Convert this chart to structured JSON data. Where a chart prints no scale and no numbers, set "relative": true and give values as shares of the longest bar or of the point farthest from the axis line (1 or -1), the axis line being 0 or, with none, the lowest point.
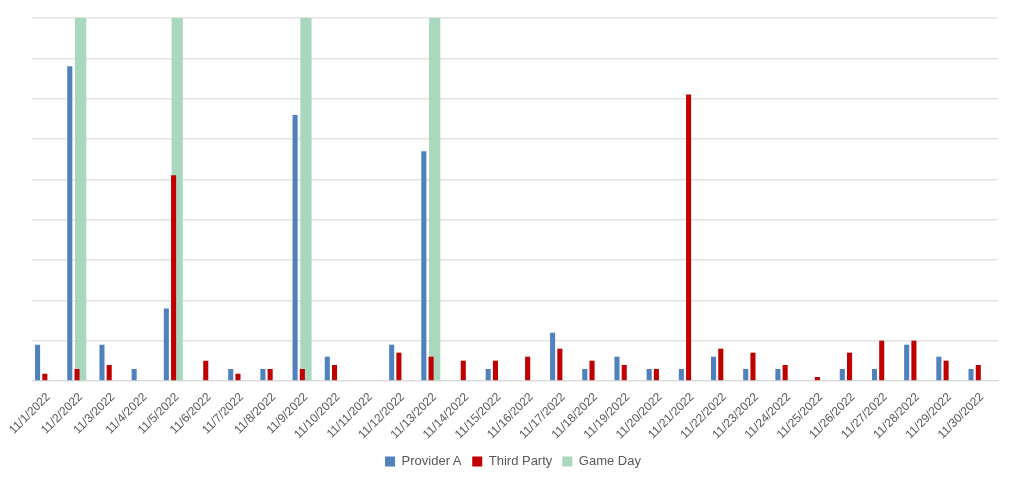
{
  "chart_data": {
    "type": "bar",
    "relative": true,
    "grid": "y",
    "legend": "bottom",
    "categories": [
      "11/1/2022",
      "11/2/2022",
      "11/3/2022",
      "11/4/2022",
      "11/5/2022",
      "11/6/2022",
      "11/7/2022",
      "11/8/2022",
      "11/9/2022",
      "11/10/2022",
      "11/11/2022",
      "11/12/2022",
      "11/13/2022",
      "11/14/2022",
      "11/15/2022",
      "11/16/2022",
      "11/17/2022",
      "11/18/2022",
      "11/19/2022",
      "11/20/2022",
      "11/21/2022",
      "11/22/2022",
      "11/23/2022",
      "11/24/2022",
      "11/25/2022",
      "11/26/2022",
      "11/27/2022",
      "11/28/2022",
      "11/29/2022",
      "11/30/2022"
    ],
    "series": [
      {
        "name": "Provider A",
        "color": "#4f81bd",
        "values": [
          0.1,
          0.867,
          0.1,
          0.033,
          0.2,
          null,
          0.033,
          0.033,
          0.733,
          0.067,
          null,
          0.1,
          0.633,
          null,
          0.033,
          null,
          0.133,
          0.033,
          0.067,
          0.033,
          0.033,
          0.067,
          0.033,
          0.033,
          null,
          0.033,
          0.033,
          0.1,
          0.067,
          0.033
        ]
      },
      {
        "name": "Third Party",
        "color": "#c00000",
        "values": [
          0.02,
          0.033,
          0.044,
          null,
          0.567,
          0.056,
          0.02,
          0.033,
          0.033,
          0.044,
          null,
          0.078,
          0.067,
          0.056,
          0.056,
          0.067,
          0.089,
          0.056,
          0.044,
          0.033,
          0.789,
          0.089,
          0.078,
          0.044,
          0.011,
          0.078,
          0.111,
          0.111,
          0.056,
          0.044
        ]
      },
      {
        "name": "Game Day",
        "color": "#a9d8bf",
        "values": [
          null,
          1,
          null,
          null,
          1,
          null,
          null,
          null,
          1,
          null,
          null,
          null,
          1,
          null,
          null,
          null,
          null,
          null,
          null,
          null,
          null,
          null,
          null,
          null,
          null,
          null,
          null,
          null,
          null,
          null
        ]
      }
    ]
  }
}
